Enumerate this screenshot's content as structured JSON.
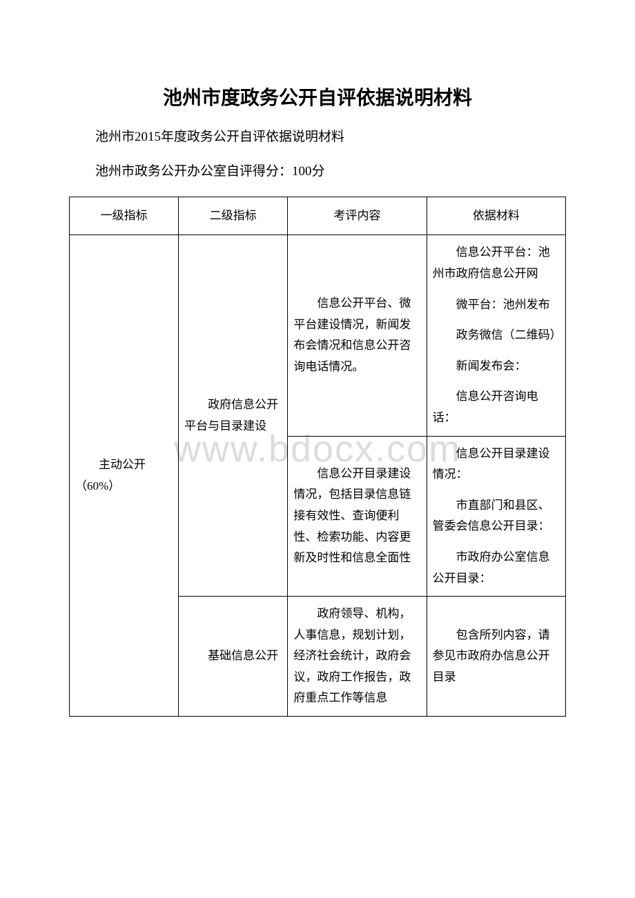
{
  "title": "池州市度政务公开自评依据说明材料",
  "subtitle1": "池州市2015年度政务公开自评依据说明材料",
  "subtitle2": "池州市政务公开办公室自评得分：100分",
  "watermark": "www.bdocx.com",
  "headers": {
    "col1": "一级指标",
    "col2": "二级指标",
    "col3": "考评内容",
    "col4": "依据材料"
  },
  "rows": {
    "l1_main": "主动公开（60%）",
    "l2_platform": "政府信息公开平台与目录建设",
    "l2_basic": "基础信息公开",
    "r1c3": "信息公开平台、微平台建设情况，新闻发布会情况和信息公开咨询电话情况。",
    "r1c4_1": "信息公开平台：池州市政府信息公开网",
    "r1c4_2": "微平台：池州发布",
    "r1c4_3": "政务微信（二维码）",
    "r1c4_4": "新闻发布会：",
    "r1c4_5": "信息公开咨询电话：",
    "r2c3": "信息公开目录建设情况，包括目录信息链接有效性、查询便利性、检索功能、内容更新及时性和信息全面性",
    "r2c4_1": "信息公开目录建设情况：",
    "r2c4_2": "市直部门和县区、管委会信息公开目录：",
    "r2c4_3": "市政府办公室信息公开目录：",
    "r3c3": "政府领导、机构，人事信息，规划计划，经济社会统计，政府会议，政府工作报告，政府重点工作等信息",
    "r3c4": "包含所列内容，请参见市政府办信息公开目录"
  }
}
